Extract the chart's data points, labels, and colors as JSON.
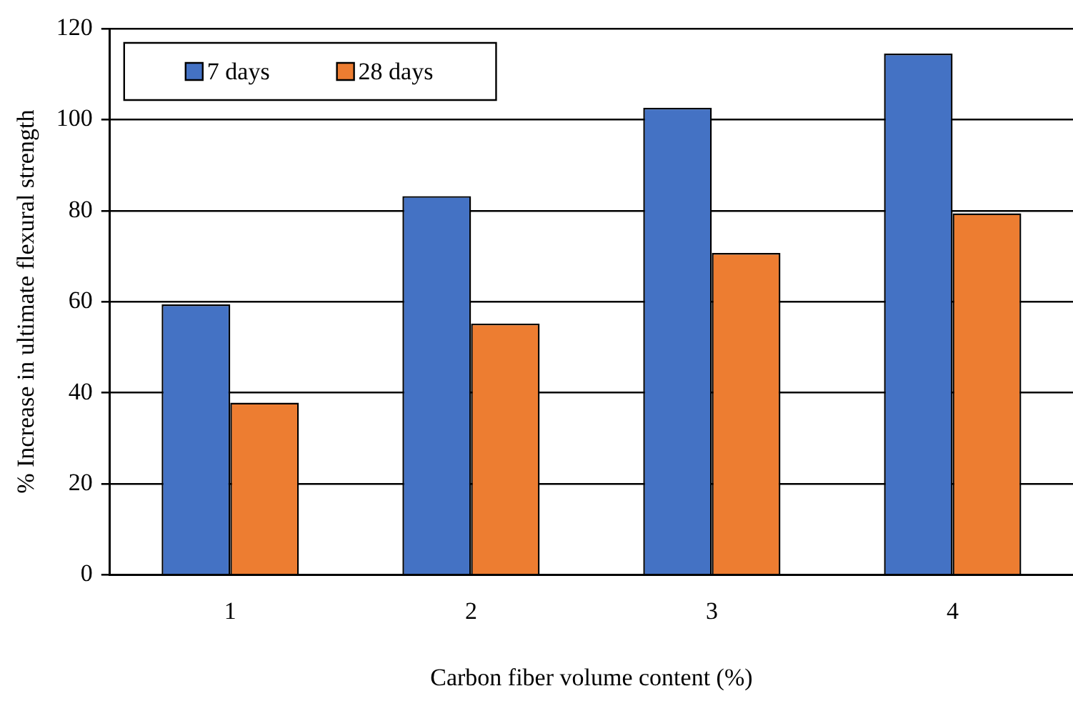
{
  "chart_data": {
    "type": "bar",
    "xlabel": "Carbon fiber volume content (%)",
    "ylabel": "% Increase in ultimate flexural strength",
    "categories": [
      "1",
      "2",
      "3",
      "4"
    ],
    "series": [
      {
        "name": "7 days",
        "color": "#4472c4",
        "values": [
          59.4,
          83.2,
          102.6,
          114.5
        ]
      },
      {
        "name": "28 days",
        "color": "#ed7d31",
        "values": [
          37.8,
          55.2,
          70.7,
          79.4
        ]
      }
    ],
    "ylim": [
      0,
      120
    ],
    "yticks": [
      0,
      20,
      40,
      60,
      80,
      100,
      120
    ],
    "grid": "y",
    "legend": "top left"
  }
}
